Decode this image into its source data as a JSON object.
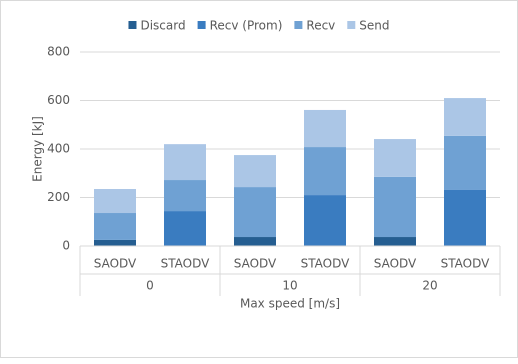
{
  "chart_data": {
    "type": "stacked-bar",
    "y_label": "Energy [kJ]",
    "x_label": "Max speed [m/s]",
    "categories": [
      "SAODV",
      "STAODV",
      "SAODV",
      "STAODV",
      "SAODV",
      "STAODV"
    ],
    "x_groups": [
      "0",
      "10",
      "20"
    ],
    "series": [
      {
        "name": "Discard",
        "color": "#255e91",
        "values": [
          25,
          0,
          37,
          0,
          37,
          0
        ]
      },
      {
        "name": "Recv (Prom)",
        "color": "#3a7cc0",
        "values": [
          0,
          144,
          0,
          210,
          0,
          231
        ]
      },
      {
        "name": "Recv",
        "color": "#6fa1d3",
        "values": [
          111,
          128,
          206,
          198,
          248,
          223
        ]
      },
      {
        "name": "Send",
        "color": "#abc6e6",
        "values": [
          99,
          148,
          132,
          153,
          156,
          156
        ]
      }
    ],
    "ylim": [
      0,
      800
    ],
    "yticks": [
      0,
      200,
      400,
      600,
      800
    ],
    "grid": true,
    "legend": "top"
  }
}
